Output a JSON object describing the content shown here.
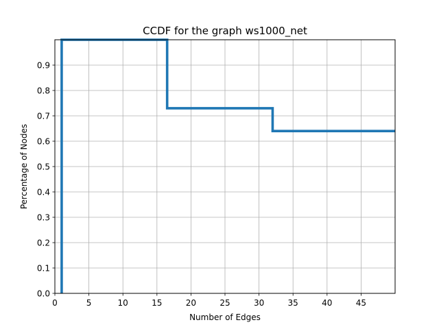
{
  "chart_data": {
    "type": "line",
    "title": "CCDF for the graph ws1000_net",
    "xlabel": "Number of Edges",
    "ylabel": "Percentage of Nodes",
    "xlim": [
      0,
      50
    ],
    "ylim": [
      0,
      1.0
    ],
    "xticks": [
      "0",
      "5",
      "10",
      "15",
      "20",
      "25",
      "30",
      "35",
      "40",
      "45"
    ],
    "xtick_values": [
      0,
      5,
      10,
      15,
      20,
      25,
      30,
      35,
      40,
      45
    ],
    "yticks": [
      "0.0",
      "0.1",
      "0.2",
      "0.3",
      "0.4",
      "0.5",
      "0.6",
      "0.7",
      "0.8",
      "0.9"
    ],
    "ytick_values": [
      0.0,
      0.1,
      0.2,
      0.3,
      0.4,
      0.5,
      0.6,
      0.7,
      0.8,
      0.9
    ],
    "grid": true,
    "step": "post",
    "series": [
      {
        "color": "#1f77b4",
        "x": [
          1,
          1,
          16.5,
          16.5,
          32,
          32,
          50
        ],
        "y": [
          0,
          1.0,
          1.0,
          0.73,
          0.73,
          0.64,
          0.64
        ]
      }
    ]
  }
}
